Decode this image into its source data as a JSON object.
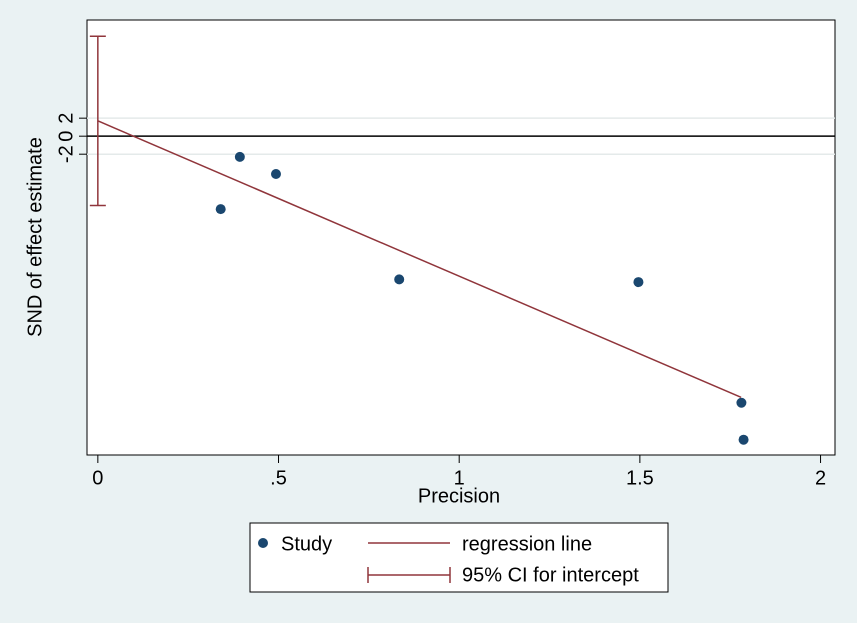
{
  "chart_data": {
    "type": "scatter",
    "xlabel": "Precision",
    "ylabel": "SND of effect estimate",
    "xlim": [
      -0.03,
      2.04
    ],
    "ylim": [
      -35.4,
      12.9
    ],
    "xticks": [
      0,
      {
        "value": 0.5,
        "label": ".5"
      },
      1,
      1.5,
      2
    ],
    "yticks": [
      -2,
      0,
      2
    ],
    "grid": true,
    "series": [
      {
        "name": "Study",
        "color": "#1a476f",
        "x": [
          0.34,
          0.393,
          0.493,
          0.834,
          1.496,
          1.781,
          1.787
        ],
        "values": [
          -8.1,
          -2.3,
          -4.2,
          -15.9,
          -16.2,
          -29.6,
          -33.7
        ]
      },
      {
        "name": "regression line",
        "color": "#90353b",
        "x": [
          0,
          1.78
        ],
        "values": [
          1.7,
          -29.0
        ]
      }
    ],
    "ci": {
      "name": "95% CI for intercept",
      "color": "#90353b",
      "x": 0,
      "lower": -7.7,
      "upper": 11.1
    },
    "legend": "bottom"
  }
}
